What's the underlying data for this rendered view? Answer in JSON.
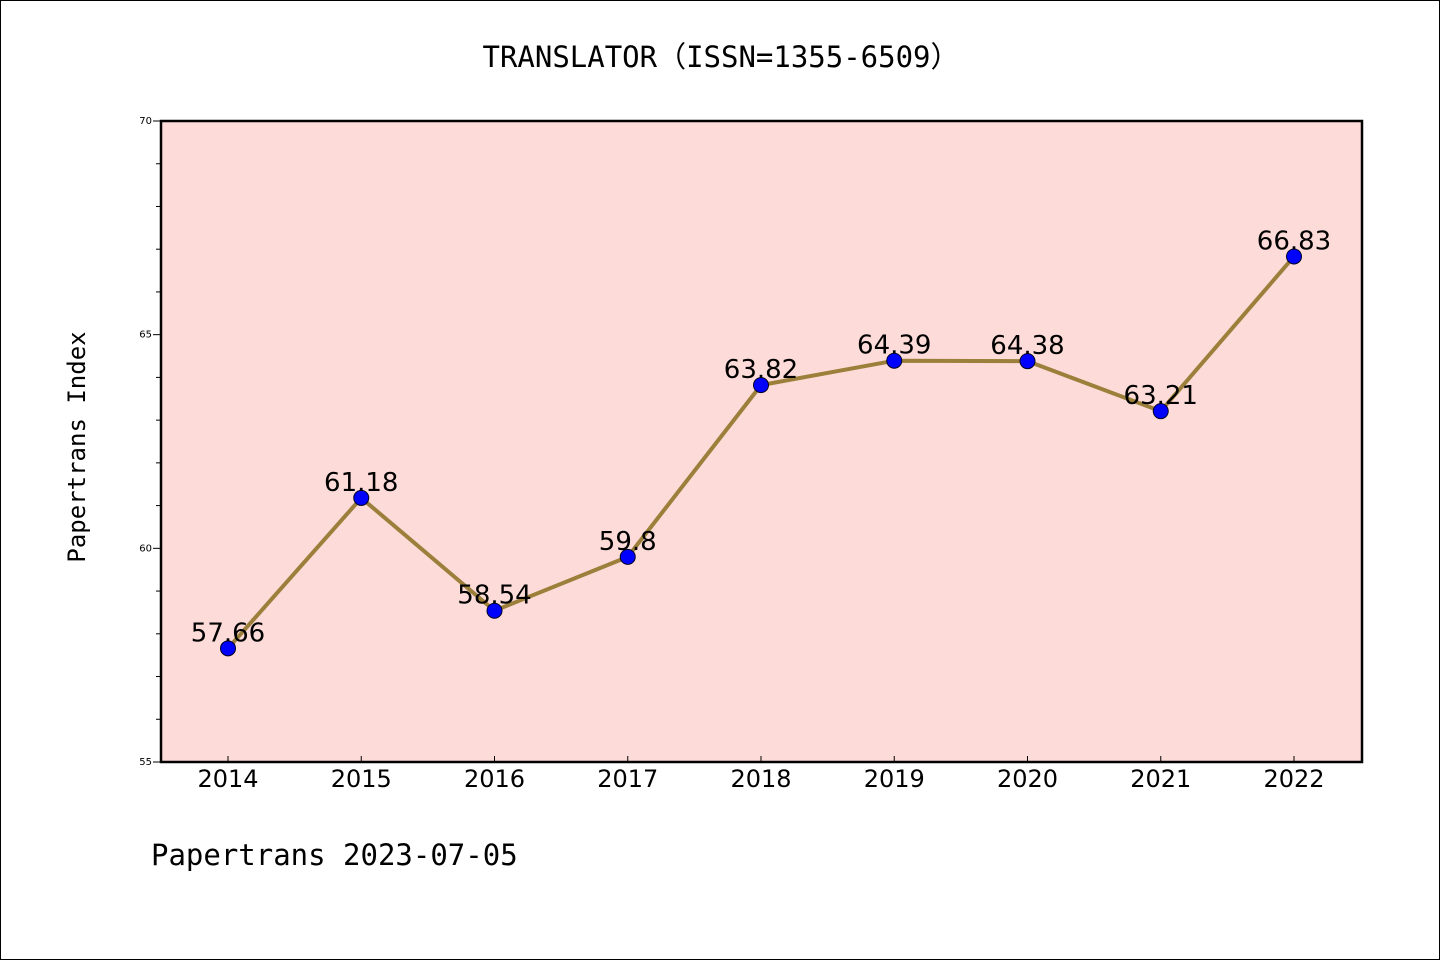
{
  "chart_data": {
    "type": "line",
    "title": "TRANSLATOR（ISSN=1355-6509）",
    "xlabel": "",
    "ylabel": "Papertrans Index",
    "categories": [
      "2014",
      "2015",
      "2016",
      "2017",
      "2018",
      "2019",
      "2020",
      "2021",
      "2022"
    ],
    "series": [
      {
        "values": [
          57.66,
          61.18,
          58.54,
          59.8,
          63.82,
          64.39,
          64.38,
          63.21,
          66.83
        ],
        "data_labels": [
          "57.66",
          "61.18",
          "58.54",
          "59.8",
          "63.82",
          "64.39",
          "64.38",
          "63.21",
          "66.83"
        ]
      }
    ],
    "ylim": [
      55,
      70
    ],
    "yticks": [
      "55",
      "60",
      "65",
      "70"
    ],
    "grid": false,
    "legend": "none"
  },
  "footer": "Papertrans 2023-07-05",
  "colors": {
    "plot_background": "#FDDBD8",
    "line": "#9B7F3A",
    "marker": "#0000FF",
    "axis": "#000000"
  }
}
